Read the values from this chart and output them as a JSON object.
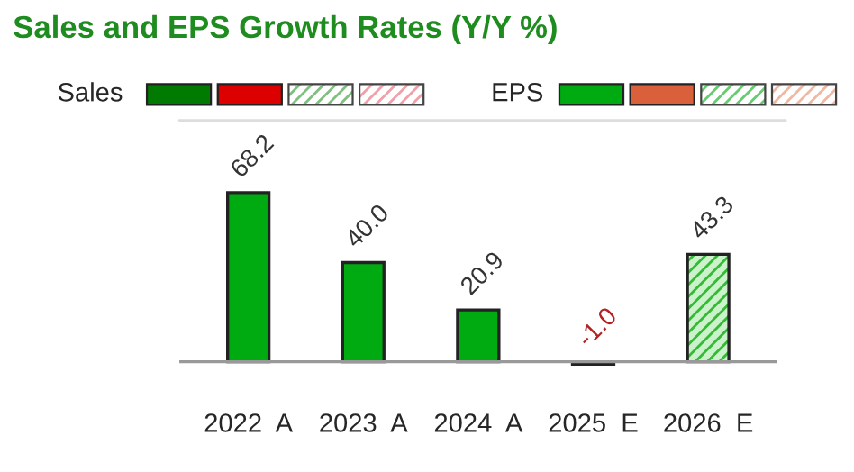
{
  "chart_data": {
    "type": "bar",
    "title": "Sales and EPS Growth Rates (Y/Y %)",
    "categories": [
      "2022  A",
      "2023  A",
      "2024  A",
      "2025  E",
      "2026  E"
    ],
    "series": [
      {
        "name": "Sales",
        "color": "#007a00",
        "values": [
          null,
          null,
          null,
          null,
          null
        ]
      },
      {
        "name": "EPS",
        "color": "#00aa11",
        "colors": [
          "#00aa11",
          "#00aa11",
          "#00aa11",
          "#f7dccf",
          "#ccf2cc"
        ],
        "values": [
          68.2,
          40.0,
          20.9,
          -1.0,
          43.3
        ],
        "value_labels": [
          "68.2",
          "40.0",
          "20.9",
          "-1.0",
          "43.3"
        ]
      }
    ],
    "legend": "top"
  }
}
